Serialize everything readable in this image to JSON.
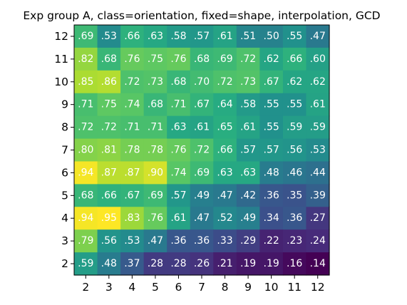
{
  "chart_data": {
    "type": "heatmap",
    "title": "Exp group A, class=orientation, fixed=shape, interpolation, GCD",
    "xlabel": "",
    "ylabel": "",
    "x_ticks": [
      "2",
      "3",
      "4",
      "5",
      "6",
      "7",
      "8",
      "9",
      "10",
      "11",
      "12"
    ],
    "y_ticks": [
      "12",
      "11",
      "10",
      "9",
      "8",
      "7",
      "6",
      "5",
      "4",
      "3",
      "2"
    ],
    "colormap": "viridis",
    "value_range": [
      0.14,
      0.95
    ],
    "grid": false,
    "rows": [
      {
        "y": "12",
        "labels": [
          ".69",
          ".53",
          ".66",
          ".63",
          ".58",
          ".57",
          ".61",
          ".51",
          ".50",
          ".55",
          ".47"
        ],
        "values": [
          0.69,
          0.53,
          0.66,
          0.63,
          0.58,
          0.57,
          0.61,
          0.51,
          0.5,
          0.55,
          0.47
        ]
      },
      {
        "y": "11",
        "labels": [
          ".82",
          ".68",
          ".76",
          ".75",
          ".76",
          ".68",
          ".69",
          ".72",
          ".62",
          ".66",
          ".60"
        ],
        "values": [
          0.82,
          0.68,
          0.76,
          0.75,
          0.76,
          0.68,
          0.69,
          0.72,
          0.62,
          0.66,
          0.6
        ]
      },
      {
        "y": "10",
        "labels": [
          ".85",
          ".86",
          ".72",
          ".73",
          ".68",
          ".70",
          ".72",
          ".73",
          ".67",
          ".62",
          ".62"
        ],
        "values": [
          0.85,
          0.86,
          0.72,
          0.73,
          0.68,
          0.7,
          0.72,
          0.73,
          0.67,
          0.62,
          0.62
        ]
      },
      {
        "y": "9",
        "labels": [
          ".71",
          ".75",
          ".74",
          ".68",
          ".71",
          ".67",
          ".64",
          ".58",
          ".55",
          ".55",
          ".61"
        ],
        "values": [
          0.71,
          0.75,
          0.74,
          0.68,
          0.71,
          0.67,
          0.64,
          0.58,
          0.55,
          0.55,
          0.61
        ]
      },
      {
        "y": "8",
        "labels": [
          ".72",
          ".72",
          ".71",
          ".71",
          ".63",
          ".61",
          ".65",
          ".61",
          ".55",
          ".59",
          ".59"
        ],
        "values": [
          0.72,
          0.72,
          0.71,
          0.71,
          0.63,
          0.61,
          0.65,
          0.61,
          0.55,
          0.59,
          0.59
        ]
      },
      {
        "y": "7",
        "labels": [
          ".80",
          ".81",
          ".78",
          ".78",
          ".76",
          ".72",
          ".66",
          ".57",
          ".57",
          ".56",
          ".53"
        ],
        "values": [
          0.8,
          0.81,
          0.78,
          0.78,
          0.76,
          0.72,
          0.66,
          0.57,
          0.57,
          0.56,
          0.53
        ]
      },
      {
        "y": "6",
        "labels": [
          ".94",
          ".87",
          ".87",
          ".90",
          ".74",
          ".69",
          ".63",
          ".63",
          ".48",
          ".46",
          ".44"
        ],
        "values": [
          0.94,
          0.87,
          0.87,
          0.9,
          0.74,
          0.69,
          0.63,
          0.63,
          0.48,
          0.46,
          0.44
        ]
      },
      {
        "y": "5",
        "labels": [
          ".68",
          ".66",
          ".67",
          ".69",
          ".57",
          ".49",
          ".47",
          ".42",
          ".36",
          ".35",
          ".39"
        ],
        "values": [
          0.68,
          0.66,
          0.67,
          0.69,
          0.57,
          0.49,
          0.47,
          0.42,
          0.36,
          0.35,
          0.39
        ]
      },
      {
        "y": "4",
        "labels": [
          ".94",
          ".95",
          ".83",
          ".76",
          ".61",
          ".47",
          ".52",
          ".49",
          ".34",
          ".36",
          ".27"
        ],
        "values": [
          0.94,
          0.95,
          0.83,
          0.76,
          0.61,
          0.47,
          0.52,
          0.49,
          0.34,
          0.36,
          0.27
        ]
      },
      {
        "y": "3",
        "labels": [
          ".79",
          ".56",
          ".53",
          ".47",
          ".36",
          ".36",
          ".33",
          ".29",
          ".22",
          ".23",
          ".24"
        ],
        "values": [
          0.79,
          0.56,
          0.53,
          0.47,
          0.36,
          0.36,
          0.33,
          0.29,
          0.22,
          0.23,
          0.24
        ]
      },
      {
        "y": "2",
        "labels": [
          ".59",
          ".48",
          ".37",
          ".28",
          ".28",
          ".26",
          ".21",
          ".19",
          ".19",
          ".16",
          ".14"
        ],
        "values": [
          0.59,
          0.48,
          0.37,
          0.28,
          0.28,
          0.26,
          0.21,
          0.19,
          0.19,
          0.16,
          0.14
        ]
      }
    ]
  }
}
